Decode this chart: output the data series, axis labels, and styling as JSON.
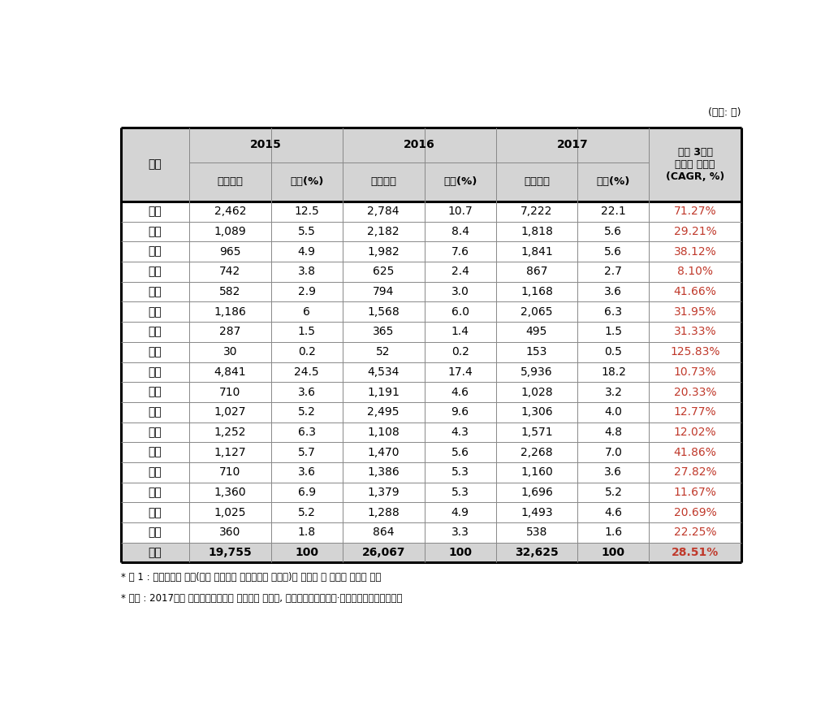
{
  "unit_text": "(단위: 건)",
  "rows": [
    [
      "서울",
      "2,462",
      "12.5",
      "2,784",
      "10.7",
      "7,222",
      "22.1",
      "71.27%"
    ],
    [
      "부산",
      "1,089",
      "5.5",
      "2,182",
      "8.4",
      "1,818",
      "5.6",
      "29.21%"
    ],
    [
      "대구",
      "965",
      "4.9",
      "1,982",
      "7.6",
      "1,841",
      "5.6",
      "38.12%"
    ],
    [
      "인천",
      "742",
      "3.8",
      "625",
      "2.4",
      "867",
      "2.7",
      "8.10%"
    ],
    [
      "광주",
      "582",
      "2.9",
      "794",
      "3.0",
      "1,168",
      "3.6",
      "41.66%"
    ],
    [
      "대전",
      "1,186",
      "6",
      "1,568",
      "6.0",
      "2,065",
      "6.3",
      "31.95%"
    ],
    [
      "울산",
      "287",
      "1.5",
      "365",
      "1.4",
      "495",
      "1.5",
      "31.33%"
    ],
    [
      "세종",
      "30",
      "0.2",
      "52",
      "0.2",
      "153",
      "0.5",
      "125.83%"
    ],
    [
      "경기",
      "4,841",
      "24.5",
      "4,534",
      "17.4",
      "5,936",
      "18.2",
      "10.73%"
    ],
    [
      "강원",
      "710",
      "3.6",
      "1,191",
      "4.6",
      "1,028",
      "3.2",
      "20.33%"
    ],
    [
      "충북",
      "1,027",
      "5.2",
      "2,495",
      "9.6",
      "1,306",
      "4.0",
      "12.77%"
    ],
    [
      "충남",
      "1,252",
      "6.3",
      "1,108",
      "4.3",
      "1,571",
      "4.8",
      "12.02%"
    ],
    [
      "전북",
      "1,127",
      "5.7",
      "1,470",
      "5.6",
      "2,268",
      "7.0",
      "41.86%"
    ],
    [
      "전남",
      "710",
      "3.6",
      "1,386",
      "5.3",
      "1,160",
      "3.6",
      "27.82%"
    ],
    [
      "경북",
      "1,360",
      "6.9",
      "1,379",
      "5.3",
      "1,696",
      "5.2",
      "11.67%"
    ],
    [
      "경남",
      "1,025",
      "5.2",
      "1,288",
      "4.9",
      "1,493",
      "4.6",
      "20.69%"
    ],
    [
      "제주",
      "360",
      "1.8",
      "864",
      "3.3",
      "538",
      "1.6",
      "22.25%"
    ],
    [
      "총계",
      "19,755",
      "100",
      "26,067",
      "100",
      "32,625",
      "100",
      "28.51%"
    ]
  ],
  "footnotes": [
    "* 주 1 : 지역분류가 기타(분산 수행되어 지역분류가 불가능)와 해외로 된 사업화 실적은 제외",
    "* 출처 : 2017년도 국가연구개발사업 성과분석 보고서, 과학기술정보통신부·한국과학기술기획평가원"
  ],
  "header_bg": "#d4d4d4",
  "row_bg": "#ffffff",
  "total_row_bg": "#d4d4d4",
  "thick_lw": 2.2,
  "thin_lw": 0.7,
  "cagr_color": "#c0392b",
  "text_color": "#000000",
  "font_size_header": 10,
  "font_size_data": 10,
  "font_size_subheader": 9.5,
  "font_size_unit": 9,
  "font_size_footnote": 8.5
}
